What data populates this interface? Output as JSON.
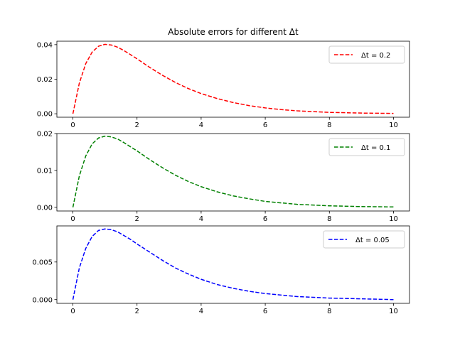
{
  "chart_data": [
    {
      "type": "line",
      "title": "Absolute errors for different Δt",
      "xlabel": "",
      "ylabel": "",
      "xlim": [
        -0.5,
        10.5
      ],
      "ylim": [
        -0.002,
        0.042
      ],
      "xticks": [
        0,
        2,
        4,
        6,
        8,
        10
      ],
      "xtick_labels": [
        "0",
        "2",
        "4",
        "6",
        "8",
        "10"
      ],
      "yticks": [
        0.0,
        0.02,
        0.04
      ],
      "ytick_labels": [
        "0.00",
        "0.02",
        "0.04"
      ],
      "grid": false,
      "legend_position": "top-right",
      "series": [
        {
          "name": "Δt = 0.2",
          "color": "#ff0000",
          "line_style": "dashed",
          "x": [
            0,
            0.2,
            0.4,
            0.6,
            0.8,
            1.0,
            1.2,
            1.4,
            1.6,
            1.8,
            2.0,
            2.4,
            2.8,
            3.2,
            3.6,
            4.0,
            4.5,
            5.0,
            5.5,
            6.0,
            6.5,
            7.0,
            8.0,
            9.0,
            10.0
          ],
          "y": [
            0.0,
            0.0177,
            0.029,
            0.0357,
            0.0391,
            0.0402,
            0.0398,
            0.0385,
            0.0365,
            0.0342,
            0.0318,
            0.0268,
            0.0222,
            0.0181,
            0.0146,
            0.0117,
            0.0088,
            0.0065,
            0.0047,
            0.0034,
            0.0024,
            0.0017,
            0.0008,
            0.0004,
            0.0002
          ]
        }
      ]
    },
    {
      "type": "line",
      "title": "",
      "xlabel": "",
      "ylabel": "",
      "xlim": [
        -0.5,
        10.5
      ],
      "ylim": [
        -0.001,
        0.02
      ],
      "xticks": [
        0,
        2,
        4,
        6,
        8,
        10
      ],
      "xtick_labels": [
        "0",
        "2",
        "4",
        "6",
        "8",
        "10"
      ],
      "yticks": [
        0.0,
        0.01,
        0.02
      ],
      "ytick_labels": [
        "0.00",
        "0.01",
        "0.02"
      ],
      "grid": false,
      "legend_position": "top-right",
      "series": [
        {
          "name": "Δt = 0.1",
          "color": "#008000",
          "line_style": "dashed",
          "x": [
            0,
            0.2,
            0.4,
            0.6,
            0.8,
            1.0,
            1.2,
            1.4,
            1.6,
            1.8,
            2.0,
            2.4,
            2.8,
            3.2,
            3.6,
            4.0,
            4.5,
            5.0,
            5.5,
            6.0,
            6.5,
            7.0,
            8.0,
            9.0,
            10.0
          ],
          "y": [
            0.0,
            0.0085,
            0.0139,
            0.0172,
            0.0188,
            0.0193,
            0.0191,
            0.0185,
            0.0175,
            0.0164,
            0.0153,
            0.0129,
            0.0107,
            0.0087,
            0.007,
            0.0056,
            0.0042,
            0.0031,
            0.0023,
            0.0016,
            0.0012,
            0.0008,
            0.0004,
            0.0002,
            0.0001
          ]
        }
      ]
    },
    {
      "type": "line",
      "title": "",
      "xlabel": "",
      "ylabel": "",
      "xlim": [
        -0.5,
        10.5
      ],
      "ylim": [
        -0.0005,
        0.0098
      ],
      "xticks": [
        0,
        2,
        4,
        6,
        8,
        10
      ],
      "xtick_labels": [
        "0",
        "2",
        "4",
        "6",
        "8",
        "10"
      ],
      "yticks": [
        0.0,
        0.005
      ],
      "ytick_labels": [
        "0.000",
        "0.005"
      ],
      "grid": false,
      "legend_position": "top-right",
      "series": [
        {
          "name": "Δt = 0.05",
          "color": "#0000ff",
          "line_style": "dashed",
          "x": [
            0,
            0.2,
            0.4,
            0.6,
            0.8,
            1.0,
            1.2,
            1.4,
            1.6,
            1.8,
            2.0,
            2.4,
            2.8,
            3.2,
            3.6,
            4.0,
            4.5,
            5.0,
            5.5,
            6.0,
            6.5,
            7.0,
            8.0,
            9.0,
            10.0
          ],
          "y": [
            0.0,
            0.0042,
            0.0068,
            0.0084,
            0.0092,
            0.0094,
            0.0093,
            0.009,
            0.0085,
            0.008,
            0.0074,
            0.0063,
            0.0052,
            0.0042,
            0.0034,
            0.0027,
            0.002,
            0.0015,
            0.0011,
            0.0008,
            0.0006,
            0.0004,
            0.0002,
            0.0001,
            0.0
          ]
        }
      ]
    }
  ]
}
